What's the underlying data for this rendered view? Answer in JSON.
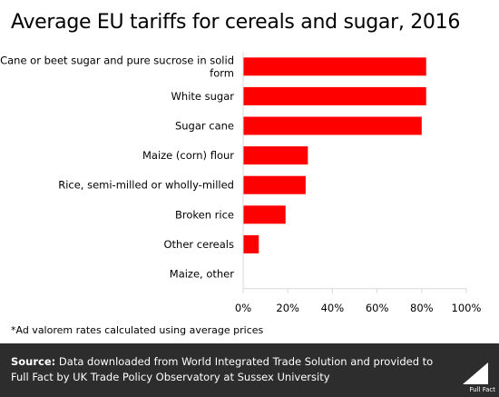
{
  "title": "Average EU tariffs for cereals and sugar, 2016",
  "note": "*Ad valorem rates calculated using average prices",
  "footer": {
    "source_label": "Source:",
    "source_text": " Data downloaded from World Integrated Trade Solution and provided to Full Fact by UK Trade Policy Observatory at Sussex University",
    "logo_text": "Full Fact"
  },
  "colors": {
    "bar": "#ff0000",
    "footer_bg": "#2d2d2d"
  },
  "chart_data": {
    "type": "bar",
    "orientation": "horizontal",
    "title": "Average EU tariffs for cereals and sugar, 2016",
    "categories": [
      "Cane or beet sugar and pure sucrose in solid form",
      "White sugar",
      "Sugar cane",
      "Maize (corn) flour",
      "Rice, semi-milled or wholly-milled",
      "Broken rice",
      "Other cereals",
      "Maize, other"
    ],
    "values": [
      82,
      82,
      80,
      29,
      28,
      19,
      7,
      0
    ],
    "xlim": [
      0,
      100
    ],
    "xticks": [
      "0%",
      "20%",
      "40%",
      "60%",
      "80%",
      "100%"
    ],
    "grid": false
  }
}
